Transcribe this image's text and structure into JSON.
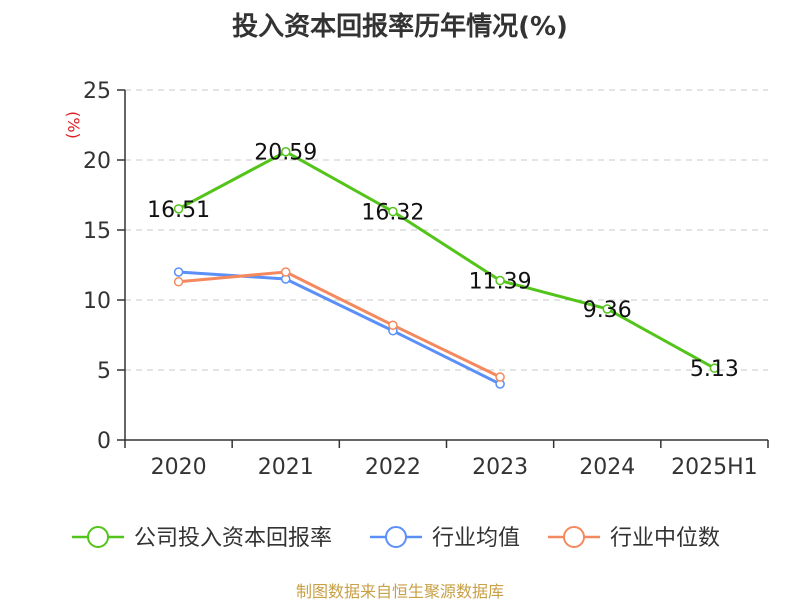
{
  "chart_data": {
    "type": "line",
    "title": "投入资本回报率历年情况(%)",
    "ylabel": "(%)",
    "categories": [
      "2020",
      "2021",
      "2022",
      "2023",
      "2024",
      "2025H1"
    ],
    "ylim": [
      0,
      25
    ],
    "yticks": [
      0,
      5,
      10,
      15,
      20,
      25
    ],
    "grid": true,
    "legend_position": "bottom",
    "series": [
      {
        "name": "公司投入资本回报率",
        "color": "#52c41a",
        "values": [
          16.51,
          20.59,
          16.32,
          11.39,
          9.36,
          5.13
        ],
        "labels": [
          "16.51",
          "20.59",
          "16.32",
          "11.39",
          "9.36",
          "5.13"
        ]
      },
      {
        "name": "行业均值",
        "color": "#5b8ff9",
        "values": [
          12.0,
          11.5,
          7.8,
          4.0,
          null,
          null
        ]
      },
      {
        "name": "行业中位数",
        "color": "#f4895f",
        "values": [
          11.3,
          12.0,
          8.2,
          4.5,
          null,
          null
        ]
      }
    ]
  },
  "source": "制图数据来自恒生聚源数据库"
}
